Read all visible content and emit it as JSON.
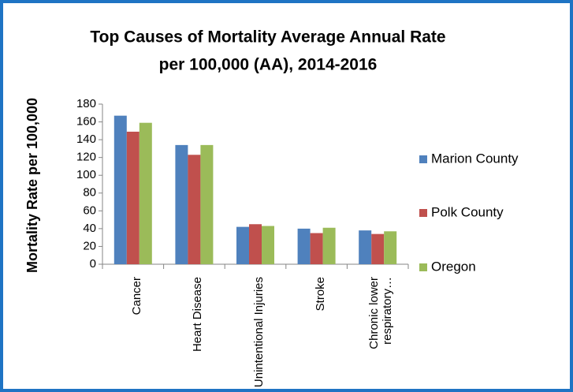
{
  "chart_data": {
    "type": "bar",
    "title": [
      "Top Causes of Mortality Average Annual Rate",
      "per 100,000 (AA), 2014-2016"
    ],
    "y_label": "Mortality Rate per 100,000",
    "categories": [
      "Cancer",
      "Heart Disease",
      "Unintentional Injuries",
      "Stroke",
      "Chronic lower respiratory…"
    ],
    "series": [
      {
        "name": "Marion County",
        "color": "#4f81bd",
        "values": [
          167,
          134,
          42,
          40,
          38
        ]
      },
      {
        "name": "Polk County",
        "color": "#c0504d",
        "values": [
          149,
          123,
          45,
          35,
          34
        ]
      },
      {
        "name": "Oregon",
        "color": "#9bbb59",
        "values": [
          159,
          134,
          43,
          41,
          37
        ]
      }
    ],
    "ylim": [
      0,
      180
    ],
    "yticks": [
      0,
      20,
      40,
      60,
      80,
      100,
      120,
      140,
      160,
      180
    ],
    "grid": false,
    "legend": "right"
  }
}
